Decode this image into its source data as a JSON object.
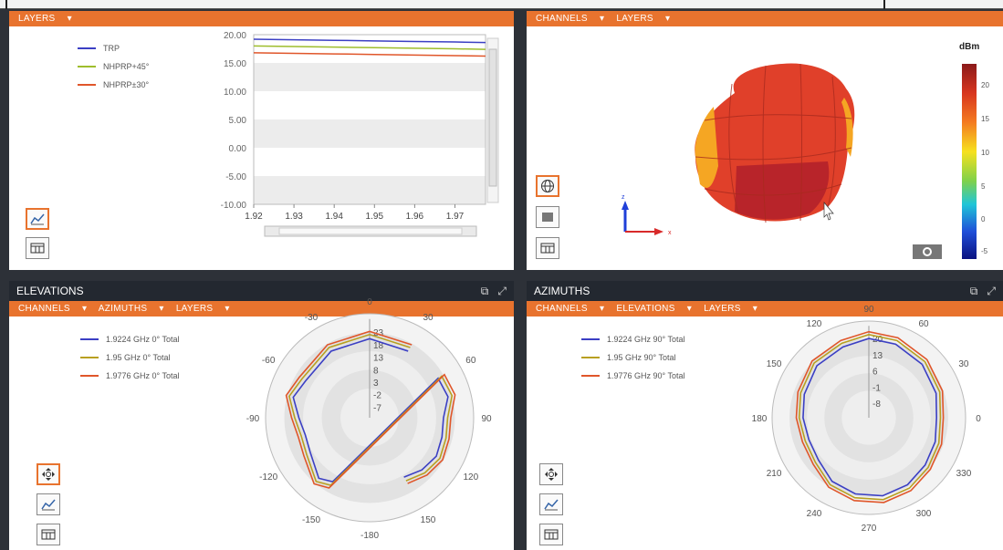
{
  "top_left": {
    "menu": "LAYERS",
    "legend": [
      {
        "label": "TRP",
        "color": "#3b3fc4"
      },
      {
        "label": "NHPRP+45°",
        "color": "#9ebd2c"
      },
      {
        "label": "NHPRP±30°",
        "color": "#e0562a"
      }
    ],
    "chart_data": {
      "type": "line",
      "x": [
        1.92,
        1.93,
        1.94,
        1.95,
        1.96,
        1.97,
        1.9776
      ],
      "x_ticks": [
        "1.92",
        "1.93",
        "1.94",
        "1.95",
        "1.96",
        "1.97"
      ],
      "y_ticks": [
        "20.00",
        "15.00",
        "10.00",
        "5.00",
        "0.00",
        "-5.00",
        "-10.00"
      ],
      "ylim": [
        -10,
        20
      ],
      "series": [
        {
          "name": "TRP",
          "values": [
            19.2,
            19.1,
            19.0,
            18.9,
            18.8,
            18.7,
            18.6
          ]
        },
        {
          "name": "NHPRP+45°",
          "values": [
            18.0,
            17.9,
            17.8,
            17.7,
            17.6,
            17.5,
            17.4
          ]
        },
        {
          "name": "NHPRP±30°",
          "values": [
            16.8,
            16.7,
            16.6,
            16.5,
            16.4,
            16.3,
            16.2
          ]
        }
      ]
    }
  },
  "top_right": {
    "menus": [
      "CHANNELS",
      "LAYERS"
    ],
    "unit": "dBm",
    "colorbar_ticks": [
      "20",
      "15",
      "10",
      "5",
      "0",
      "-5"
    ],
    "axis_z": "z",
    "axis_x": "x"
  },
  "elevations": {
    "title": "ELEVATIONS",
    "menus": [
      "CHANNELS",
      "AZIMUTHS",
      "LAYERS"
    ],
    "legend": [
      {
        "label": "1.9224 GHz 0° Total",
        "color": "#3b3fc4"
      },
      {
        "label": "1.95 GHz 0° Total",
        "color": "#b8a020"
      },
      {
        "label": "1.9776 GHz 0° Total",
        "color": "#e0562a"
      }
    ],
    "angle_labels": [
      "0",
      "30",
      "60",
      "90",
      "120",
      "150",
      "-180",
      "-150",
      "-120",
      "-90",
      "-60",
      "-30"
    ],
    "radial_labels": [
      "23",
      "18",
      "13",
      "8",
      "3",
      "-2",
      "-7"
    ]
  },
  "azimuths": {
    "title": "AZIMUTHS",
    "menus": [
      "CHANNELS",
      "ELEVATIONS",
      "LAYERS"
    ],
    "legend": [
      {
        "label": "1.9224 GHz 90° Total",
        "color": "#3b3fc4"
      },
      {
        "label": "1.95 GHz 90° Total",
        "color": "#b8a020"
      },
      {
        "label": "1.9776 GHz 90° Total",
        "color": "#e0562a"
      }
    ],
    "angle_labels": [
      "90",
      "60",
      "30",
      "0",
      "330",
      "300",
      "270",
      "240",
      "210",
      "180",
      "150",
      "120"
    ],
    "radial_labels": [
      "20",
      "13",
      "6",
      "-1",
      "-8"
    ]
  }
}
